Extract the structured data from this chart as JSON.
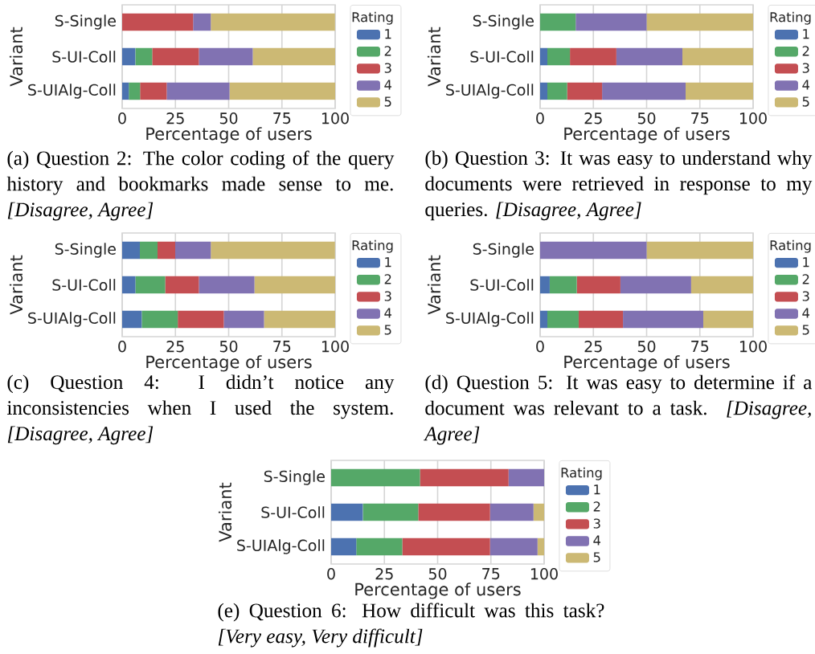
{
  "chart_data": [
    {
      "type": "bar",
      "orientation": "horizontal",
      "stacked": true,
      "categories": [
        "S-Single",
        "S-UI-Coll",
        "S-UIAlg-Coll"
      ],
      "xlabel": "Percentage of users",
      "ylabel": "Variant",
      "legend_title": "Rating",
      "legend": "right",
      "grid": "x",
      "xlim": [
        0,
        100
      ],
      "xticks": [
        0,
        25,
        50,
        75,
        100
      ],
      "series": [
        {
          "name": "1",
          "color": "#4c72b0",
          "values": [
            0,
            6.2,
            3.1
          ]
        },
        {
          "name": "2",
          "color": "#55a868",
          "values": [
            0,
            7.9,
            5.3
          ]
        },
        {
          "name": "3",
          "color": "#c44e52",
          "values": [
            33.3,
            21.9,
            12.5
          ]
        },
        {
          "name": "4",
          "color": "#8172b2",
          "values": [
            8.3,
            25.3,
            29.5
          ]
        },
        {
          "name": "5",
          "color": "#ccb974",
          "values": [
            58.3,
            38.7,
            49.6
          ]
        }
      ],
      "annotations": [
        "(a) Question 2: The color coding of the query history and bookmarks made sense to me. *[Disagree, Agree]*"
      ]
    },
    {
      "type": "bar",
      "orientation": "horizontal",
      "stacked": true,
      "categories": [
        "S-Single",
        "S-UI-Coll",
        "S-UIAlg-Coll"
      ],
      "xlabel": "Percentage of users",
      "ylabel": "Variant",
      "legend_title": "Rating",
      "legend": "right",
      "grid": "x",
      "xlim": [
        0,
        100
      ],
      "xticks": [
        0,
        25,
        50,
        75,
        100
      ],
      "series": [
        {
          "name": "1",
          "color": "#4c72b0",
          "values": [
            0,
            3.4,
            3.4
          ]
        },
        {
          "name": "2",
          "color": "#55a868",
          "values": [
            16.7,
            10.6,
            9.3
          ]
        },
        {
          "name": "3",
          "color": "#c44e52",
          "values": [
            0,
            21.8,
            16.4
          ]
        },
        {
          "name": "4",
          "color": "#8172b2",
          "values": [
            33.3,
            31.0,
            39.2
          ]
        },
        {
          "name": "5",
          "color": "#ccb974",
          "values": [
            50,
            33.2,
            31.7
          ]
        }
      ],
      "annotations": [
        "(b) Question 3: It was easy to understand why documents were retrieved in response to my queries. *[Disagree, Agree]*"
      ]
    },
    {
      "type": "bar",
      "orientation": "horizontal",
      "stacked": true,
      "categories": [
        "S-Single",
        "S-UI-Coll",
        "S-UIAlg-Coll"
      ],
      "xlabel": "Percentage of users",
      "ylabel": "Variant",
      "legend_title": "Rating",
      "legend": "right",
      "grid": "x",
      "xlim": [
        0,
        100
      ],
      "xticks": [
        0,
        25,
        50,
        75,
        100
      ],
      "series": [
        {
          "name": "1",
          "color": "#4c72b0",
          "values": [
            8.3,
            6.2,
            9.2
          ]
        },
        {
          "name": "2",
          "color": "#55a868",
          "values": [
            8.3,
            14.0,
            16.9
          ]
        },
        {
          "name": "3",
          "color": "#c44e52",
          "values": [
            8.3,
            15.8,
            21.6
          ]
        },
        {
          "name": "4",
          "color": "#8172b2",
          "values": [
            16.7,
            26.1,
            18.9
          ]
        },
        {
          "name": "5",
          "color": "#ccb974",
          "values": [
            58.3,
            37.9,
            33.4
          ]
        }
      ],
      "annotations": [
        "(c) Question 4: I didn’t notice any inconsistencies when I used the system. *[Disagree, Agree]*"
      ]
    },
    {
      "type": "bar",
      "orientation": "horizontal",
      "stacked": true,
      "categories": [
        "S-Single",
        "S-UI-Coll",
        "S-UIAlg-Coll"
      ],
      "xlabel": "Percentage of users",
      "ylabel": "Variant",
      "legend_title": "Rating",
      "legend": "right",
      "grid": "x",
      "xlim": [
        0,
        100
      ],
      "xticks": [
        0,
        25,
        50,
        75,
        100
      ],
      "series": [
        {
          "name": "1",
          "color": "#4c72b0",
          "values": [
            0,
            4.5,
            3.4
          ]
        },
        {
          "name": "2",
          "color": "#55a868",
          "values": [
            0,
            12.7,
            14.7
          ]
        },
        {
          "name": "3",
          "color": "#c44e52",
          "values": [
            0,
            20.5,
            20.8
          ]
        },
        {
          "name": "4",
          "color": "#8172b2",
          "values": [
            50,
            33.2,
            37.7
          ]
        },
        {
          "name": "5",
          "color": "#ccb974",
          "values": [
            50,
            29.1,
            23.4
          ]
        }
      ],
      "annotations": [
        "(d) Question 5: It was easy to determine if a document was relevant to a task. *[Disagree, Agree]*"
      ]
    },
    {
      "type": "bar",
      "orientation": "horizontal",
      "stacked": true,
      "categories": [
        "S-Single",
        "S-UI-Coll",
        "S-UIAlg-Coll"
      ],
      "xlabel": "Percentage of users",
      "ylabel": "Variant",
      "legend_title": "Rating",
      "legend": "right",
      "grid": "x",
      "xlim": [
        0,
        100
      ],
      "xticks": [
        0,
        25,
        50,
        75,
        100
      ],
      "series": [
        {
          "name": "1",
          "color": "#4c72b0",
          "values": [
            0,
            14.9,
            11.8
          ]
        },
        {
          "name": "2",
          "color": "#55a868",
          "values": [
            41.7,
            26.0,
            21.6
          ]
        },
        {
          "name": "3",
          "color": "#c44e52",
          "values": [
            41.6,
            33.7,
            41.2
          ]
        },
        {
          "name": "4",
          "color": "#8172b2",
          "values": [
            16.7,
            20.4,
            22.3
          ]
        },
        {
          "name": "5",
          "color": "#ccb974",
          "values": [
            0,
            5.0,
            3.1
          ]
        }
      ],
      "annotations": [
        "(e) Question 6: How difficult was this task? *[Very easy, Very difficult]*"
      ]
    }
  ]
}
